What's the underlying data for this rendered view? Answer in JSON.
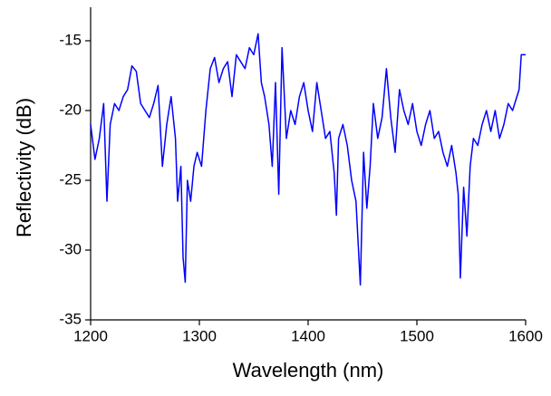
{
  "chart_data": {
    "type": "line",
    "xlabel": "Wavelength (nm)",
    "ylabel": "Reflectivity (dB)",
    "xlim": [
      1200,
      1600
    ],
    "xticks": [
      1200,
      1300,
      1400,
      1500,
      1600
    ],
    "ylim": [
      -35,
      -12.6
    ],
    "yticks": [
      -35,
      -30,
      -25,
      -20,
      -15
    ],
    "series": [
      {
        "color": "#0000ff",
        "x": [
          1200,
          1204,
          1208,
          1212,
          1215,
          1218,
          1222,
          1226,
          1230,
          1234,
          1238,
          1242,
          1246,
          1250,
          1254,
          1258,
          1262,
          1266,
          1270,
          1274,
          1278,
          1280,
          1283,
          1285,
          1287,
          1289,
          1292,
          1295,
          1298,
          1302,
          1306,
          1310,
          1314,
          1318,
          1322,
          1326,
          1330,
          1334,
          1338,
          1342,
          1346,
          1350,
          1354,
          1357,
          1360,
          1364,
          1367,
          1370,
          1373,
          1376,
          1380,
          1384,
          1388,
          1392,
          1396,
          1400,
          1404,
          1408,
          1412,
          1416,
          1420,
          1424,
          1426,
          1428,
          1432,
          1436,
          1440,
          1444,
          1448,
          1451,
          1454,
          1457,
          1460,
          1464,
          1468,
          1472,
          1476,
          1480,
          1484,
          1488,
          1492,
          1496,
          1500,
          1504,
          1508,
          1512,
          1516,
          1520,
          1524,
          1528,
          1532,
          1536,
          1538,
          1540,
          1543,
          1546,
          1549,
          1552,
          1556,
          1560,
          1564,
          1568,
          1572,
          1576,
          1580,
          1584,
          1588,
          1590,
          1594,
          1596,
          1598,
          1600
        ],
        "values": [
          -21,
          -23.5,
          -22,
          -19.5,
          -26.5,
          -21,
          -19.5,
          -20,
          -19,
          -18.5,
          -16.8,
          -17.2,
          -19.5,
          -20,
          -20.5,
          -19.5,
          -18.2,
          -24,
          -21,
          -19,
          -22,
          -26.5,
          -24,
          -30.5,
          -32.3,
          -25,
          -26.5,
          -24,
          -23,
          -24,
          -20,
          -17,
          -16.2,
          -18,
          -17,
          -16.5,
          -19,
          -16,
          -16.5,
          -17,
          -15.5,
          -16,
          -14.5,
          -18,
          -19,
          -21,
          -24,
          -18,
          -26,
          -15.5,
          -22,
          -20,
          -21,
          -19,
          -18,
          -20,
          -21.5,
          -18,
          -20,
          -22,
          -21.5,
          -24.5,
          -27.5,
          -22,
          -21,
          -22.5,
          -25,
          -26.5,
          -32.5,
          -23,
          -27,
          -24,
          -19.5,
          -22,
          -20.5,
          -17,
          -20.5,
          -23,
          -18.5,
          -20,
          -21,
          -19.5,
          -21.5,
          -22.5,
          -21,
          -20,
          -22,
          -21.5,
          -23,
          -24,
          -22.5,
          -24.5,
          -26,
          -32,
          -25.5,
          -29,
          -24,
          -22,
          -22.5,
          -21,
          -20,
          -21.5,
          -20,
          -22,
          -21,
          -19.5,
          -20,
          -19.5,
          -18.5,
          -16,
          -16,
          -16
        ]
      }
    ]
  }
}
